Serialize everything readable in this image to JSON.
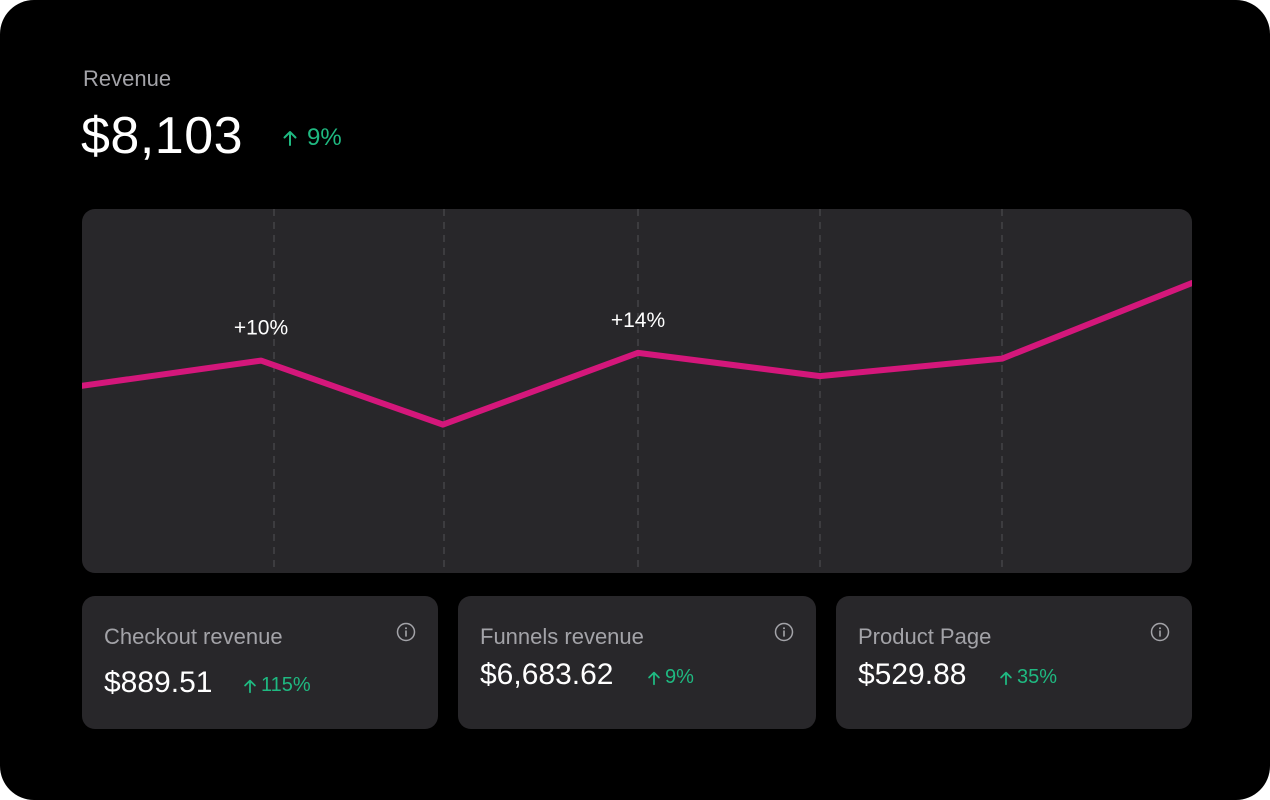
{
  "summary": {
    "label": "Revenue",
    "value": "$8,103",
    "change": "9%",
    "change_direction": "up"
  },
  "chart_data": {
    "type": "line",
    "x": [
      0,
      1,
      2,
      3,
      4,
      5,
      6
    ],
    "values": [
      47,
      60,
      27,
      64,
      52,
      61,
      100
    ],
    "ylim": [
      0,
      100
    ],
    "grid": "vertical dashed lines",
    "annotations": [
      {
        "x": 1,
        "text": "+10%"
      },
      {
        "x": 3,
        "text": "+14%"
      }
    ]
  },
  "metrics": [
    {
      "title": "Checkout revenue",
      "value": "$889.51",
      "change": "115%",
      "info_icon": "info-icon"
    },
    {
      "title": "Funnels revenue",
      "value": "$6,683.62",
      "change": "9%",
      "info_icon": "info-icon"
    },
    {
      "title": "Product Page",
      "value": "$529.88",
      "change": "35%",
      "info_icon": "info-icon"
    }
  ],
  "colors": {
    "background": "#000000",
    "panel": "#28272a",
    "line": "#d4177b",
    "positive": "#1fb981",
    "muted_text": "#a3a3a8"
  }
}
